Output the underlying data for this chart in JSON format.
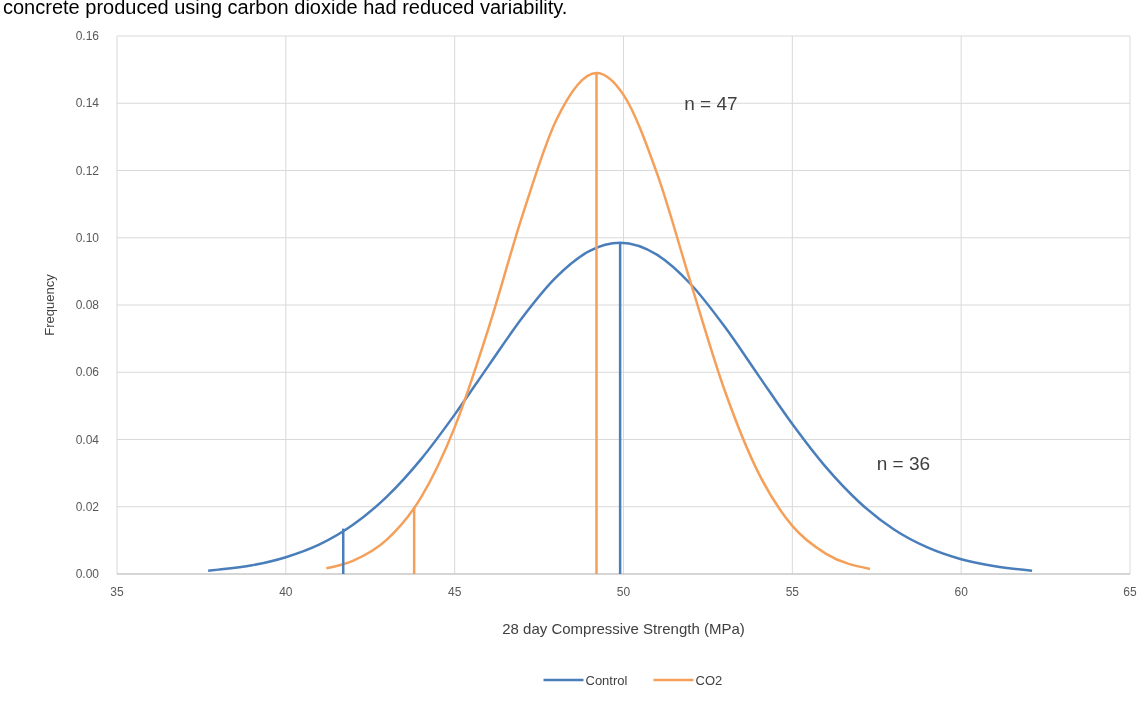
{
  "chart_data": {
    "type": "line",
    "title": "concrete produced using carbon dioxide had reduced variability.",
    "xlabel": "28 day Compressive Strength (MPa)",
    "ylabel": "Frequency",
    "xlim": [
      35,
      65
    ],
    "xticks": [
      35,
      40,
      45,
      50,
      55,
      60,
      65
    ],
    "ylim": [
      0,
      0.16
    ],
    "yticks": [
      {
        "value": 0,
        "label": "0.00"
      },
      {
        "value": 0.02,
        "label": "0.02"
      },
      {
        "value": 0.04,
        "label": "0.04"
      },
      {
        "value": 0.06,
        "label": "0.06"
      },
      {
        "value": 0.08,
        "label": "0.08"
      },
      {
        "value": 0.1,
        "label": "0.10"
      },
      {
        "value": 0.12,
        "label": "0.12"
      },
      {
        "value": 0.14,
        "label": "0.14"
      },
      {
        "value": 0.16,
        "label": "0.16"
      }
    ],
    "grid": true,
    "legend": "bottom",
    "marker": "none",
    "line_style": "solid",
    "series": [
      {
        "name": "Control",
        "color": "#4a7ebb",
        "x": [
          37.7,
          38,
          39,
          40,
          41,
          42,
          43,
          44,
          45,
          46,
          47,
          48,
          49,
          49.9,
          51,
          52,
          53,
          54,
          55,
          56,
          57,
          58,
          59,
          60,
          61,
          62.1
        ],
        "values": [
          0.001,
          0.0013,
          0.0026,
          0.005,
          0.0088,
          0.0147,
          0.0231,
          0.0341,
          0.0474,
          0.0619,
          0.0762,
          0.0882,
          0.0961,
          0.0985,
          0.0949,
          0.0861,
          0.0735,
          0.059,
          0.0446,
          0.0317,
          0.0212,
          0.0133,
          0.0079,
          0.0044,
          0.0023,
          0.001
        ]
      },
      {
        "name": "CO2",
        "color": "#f5a05a",
        "x": [
          41.2,
          42,
          43,
          44,
          45,
          46,
          47,
          48,
          49.2,
          50,
          51,
          52,
          53,
          54,
          55,
          56,
          57.3
        ],
        "values": [
          0.0017,
          0.004,
          0.0103,
          0.0227,
          0.0436,
          0.073,
          0.1064,
          0.1348,
          0.149,
          0.1425,
          0.1189,
          0.0863,
          0.0545,
          0.03,
          0.0143,
          0.006,
          0.0015
        ]
      },
      {
        "color": "#4a7ebb",
        "x": [
          41.7,
          41.7
        ],
        "values": [
          0,
          0.0135
        ]
      },
      {
        "color": "#4a7ebb",
        "x": [
          49.9,
          49.9
        ],
        "values": [
          0,
          0.0985
        ]
      },
      {
        "color": "#f5a05a",
        "x": [
          43.8,
          43.8
        ],
        "values": [
          0,
          0.02
        ]
      },
      {
        "color": "#f5a05a",
        "x": [
          49.2,
          49.2
        ],
        "values": [
          0,
          0.149
        ]
      }
    ],
    "annotations": [
      "n = 47",
      "n = 36"
    ]
  }
}
